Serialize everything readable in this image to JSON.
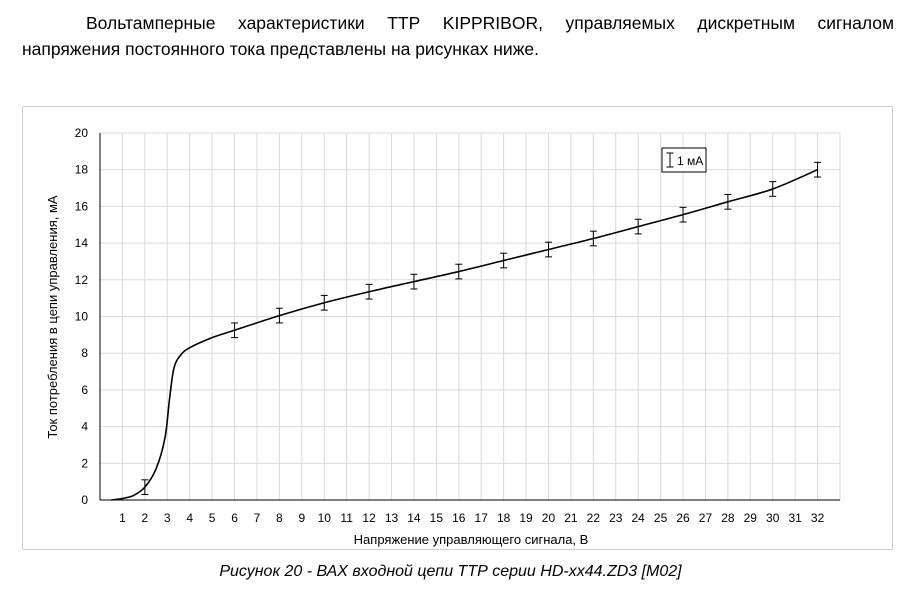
{
  "document": {
    "intro_line1": "Вольтамперные характеристики ТТР KIPPRIBOR, управляемых дискретным сигналом",
    "intro_line2": "напряжения постоянного тока представлены на рисунках ниже.",
    "caption": "Рисунок 20 - ВАХ входной цепи ТТР серии HD-xx44.ZD3 [M02]"
  },
  "colors": {
    "line": "#000000",
    "grid": "#d9d9d9",
    "axis": "#000000",
    "frame": "#d0d0d0"
  },
  "chart_data": {
    "type": "line",
    "title": "",
    "xlabel": "Напряжение управляющего сигнала, В",
    "ylabel": "Ток потребления в цепи управления, мА",
    "xlim": [
      0,
      33
    ],
    "ylim": [
      0,
      20
    ],
    "x_ticks": [
      1,
      2,
      3,
      4,
      5,
      6,
      7,
      8,
      9,
      10,
      11,
      12,
      13,
      14,
      15,
      16,
      17,
      18,
      19,
      20,
      21,
      22,
      23,
      24,
      25,
      26,
      27,
      28,
      29,
      30,
      31,
      32
    ],
    "y_ticks": [
      0,
      2,
      4,
      6,
      8,
      10,
      12,
      14,
      16,
      18,
      20
    ],
    "grid": true,
    "legend": {
      "label": "1 мА",
      "placement": "top-right"
    },
    "series": [
      {
        "points": [
          [
            0.5,
            0
          ],
          [
            1.0,
            0.08
          ],
          [
            1.5,
            0.25
          ],
          [
            2.0,
            0.7
          ],
          [
            2.5,
            1.7
          ],
          [
            2.9,
            3.4
          ],
          [
            3.1,
            5.5
          ],
          [
            3.3,
            7.2
          ],
          [
            3.6,
            7.9
          ],
          [
            4.0,
            8.3
          ],
          [
            5.0,
            8.85
          ],
          [
            6.0,
            9.25
          ],
          [
            8.0,
            10.05
          ],
          [
            10.0,
            10.75
          ],
          [
            12.0,
            11.35
          ],
          [
            14.0,
            11.9
          ],
          [
            16.0,
            12.45
          ],
          [
            18.0,
            13.05
          ],
          [
            20.0,
            13.65
          ],
          [
            22.0,
            14.25
          ],
          [
            24.0,
            14.9
          ],
          [
            26.0,
            15.55
          ],
          [
            28.0,
            16.25
          ],
          [
            30.0,
            16.95
          ],
          [
            32.0,
            18.0
          ]
        ],
        "error_bars": {
          "x": [
            2,
            6,
            8,
            10,
            12,
            14,
            16,
            18,
            20,
            22,
            24,
            26,
            28,
            30,
            32
          ],
          "y": [
            0.7,
            9.25,
            10.05,
            10.75,
            11.35,
            11.9,
            12.45,
            13.05,
            13.65,
            14.25,
            14.9,
            15.55,
            16.25,
            16.95,
            18.0
          ],
          "error": 0.4
        }
      }
    ]
  }
}
